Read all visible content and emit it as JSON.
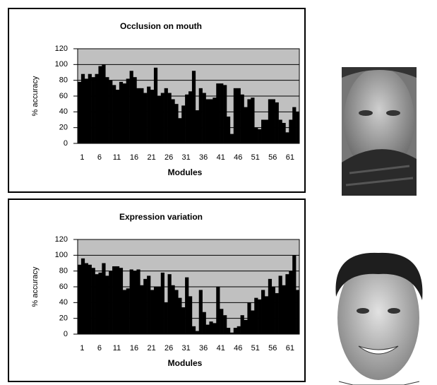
{
  "chart_data": [
    {
      "type": "bar",
      "title": "Occlusion on mouth",
      "x_label": "Modules",
      "y_label": "% accuracy",
      "categories": [
        "1",
        null,
        null,
        null,
        null,
        "6",
        null,
        null,
        null,
        null,
        "11",
        null,
        null,
        null,
        null,
        "16",
        null,
        null,
        null,
        null,
        "21",
        null,
        null,
        null,
        null,
        "26",
        null,
        null,
        null,
        null,
        "31",
        null,
        null,
        null,
        null,
        "36",
        null,
        null,
        null,
        null,
        "41",
        null,
        null,
        null,
        null,
        "46",
        null,
        null,
        null,
        null,
        "51",
        null,
        null,
        null,
        null,
        "56",
        null,
        null,
        null,
        null,
        "61",
        null,
        null,
        null
      ],
      "values": [
        78,
        88,
        82,
        88,
        84,
        88,
        98,
        100,
        84,
        80,
        74,
        68,
        78,
        76,
        82,
        92,
        84,
        70,
        70,
        64,
        72,
        68,
        96,
        60,
        64,
        70,
        64,
        56,
        50,
        32,
        48,
        62,
        66,
        92,
        42,
        70,
        64,
        56,
        56,
        58,
        76,
        76,
        74,
        34,
        12,
        70,
        70,
        62,
        46,
        56,
        58,
        20,
        18,
        30,
        30,
        56,
        56,
        52,
        30,
        26,
        14,
        30,
        46,
        40
      ],
      "color": "#000000",
      "background": "#c0c0c0",
      "grid": true,
      "ylim": [
        0,
        120
      ],
      "yticks": [
        0,
        20,
        40,
        60,
        80,
        100,
        120
      ]
    },
    {
      "type": "bar",
      "title": "Expression variation",
      "x_label": "Modules",
      "y_label": "% accuracy",
      "categories": [
        "1",
        null,
        null,
        null,
        null,
        "6",
        null,
        null,
        null,
        null,
        "11",
        null,
        null,
        null,
        null,
        "16",
        null,
        null,
        null,
        null,
        "21",
        null,
        null,
        null,
        null,
        "26",
        null,
        null,
        null,
        null,
        "31",
        null,
        null,
        null,
        null,
        "36",
        null,
        null,
        null,
        null,
        "41",
        null,
        null,
        null,
        null,
        "46",
        null,
        null,
        null,
        null,
        "51",
        null,
        null,
        null,
        null,
        "56",
        null,
        null,
        null,
        null,
        "61",
        null,
        null,
        null
      ],
      "values": [
        88,
        96,
        90,
        88,
        84,
        76,
        78,
        90,
        74,
        80,
        86,
        86,
        84,
        56,
        58,
        82,
        80,
        82,
        62,
        70,
        74,
        56,
        60,
        60,
        78,
        40,
        76,
        62,
        56,
        46,
        34,
        72,
        48,
        10,
        4,
        56,
        28,
        12,
        16,
        14,
        60,
        32,
        24,
        8,
        2,
        8,
        10,
        24,
        18,
        40,
        30,
        46,
        44,
        56,
        48,
        70,
        60,
        52,
        74,
        62,
        76,
        80,
        100,
        56
      ],
      "color": "#000000",
      "background": "#c0c0c0",
      "grid": true,
      "ylim": [
        0,
        120
      ],
      "yticks": [
        0,
        20,
        40,
        60,
        80,
        100,
        120
      ]
    }
  ]
}
